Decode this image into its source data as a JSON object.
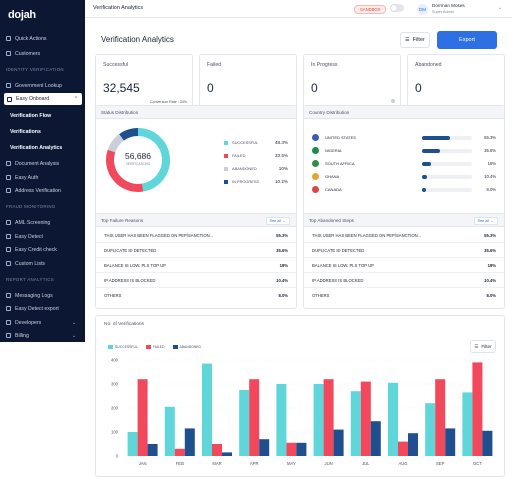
{
  "app": {
    "logo": "dojah"
  },
  "sidebar": {
    "quick_actions": "Quick Actions",
    "customers": "Customers",
    "identity_section": "IDENTITY VERIFICATION",
    "government_lookup": "Government Lookup",
    "easy_onboard": "Easy Onboard",
    "verification_flow": "Verification Flow",
    "verifications": "Verifications",
    "verification_analytics": "Verification Analytics",
    "document_analysis": "Document Analysis",
    "easy_auth": "Easy Auth",
    "address_verification": "Address Verification",
    "fraud_section": "FRAUD MONITORING",
    "aml_screening": "AML Screening",
    "easy_detect": "Easy Detect",
    "easy_credit_check": "Easy Credit check",
    "custom_lists": "Custom Lists",
    "report_section": "REPORT ANALYTICS",
    "messaging_logs": "Messaging Logs",
    "easy_detect_export": "Easy Detect export",
    "developers": "Developers",
    "billing": "Billing"
  },
  "topbar": {
    "title": "Verification Analytics",
    "sandbox": "SANDBOX",
    "avatar_initials": "DM",
    "user_name": "Dorrman Moses",
    "user_role": "Super Admin"
  },
  "page": {
    "title": "Verification Analytics",
    "filter_label": "Filter",
    "export_label": "Export"
  },
  "stats": {
    "successful_label": "Successful",
    "successful_value": "32,545",
    "conversion_rate": "Conversion Rate : 34%",
    "failed_label": "Failed",
    "failed_value": "0",
    "in_progress_label": "In Progress",
    "in_progress_value": "0",
    "abandoned_label": "Abandoned",
    "abandoned_value": "0"
  },
  "status_distribution": {
    "title": "Status Distribution",
    "total": "56,686",
    "total_label": "VERIFICATIONS",
    "items": [
      {
        "label": "SUCCESSFUL",
        "pct": "48.3%",
        "value": 48.3,
        "color": "#5fd6da"
      },
      {
        "label": "FAILED",
        "pct": "33.5%",
        "value": 33.5,
        "color": "#f2485b"
      },
      {
        "label": "ABANDONED",
        "pct": "10%",
        "value": 10,
        "color": "#c9ced8"
      },
      {
        "label": "IN PROGRESS",
        "pct": "10.2%",
        "value": 10.2,
        "color": "#1f4f8f"
      }
    ]
  },
  "country_distribution": {
    "title": "Country Distribution",
    "items": [
      {
        "name": "UNITED STATES",
        "pct": "55.3%",
        "value": 55.3,
        "flag": "#3b5bb5"
      },
      {
        "name": "NIGERIA",
        "pct": "35.6%",
        "value": 35.6,
        "flag": "#1e8a4a"
      },
      {
        "name": "SOUTH AFRICA",
        "pct": "18%",
        "value": 18,
        "flag": "#2f8f4a"
      },
      {
        "name": "GHANA",
        "pct": "10.4%",
        "value": 10.4,
        "flag": "#e0a82e"
      },
      {
        "name": "CANADA",
        "pct": "8.0%",
        "value": 8.0,
        "flag": "#e0463f"
      }
    ]
  },
  "failure_reasons": {
    "title": "Top Failure Reasons",
    "see_all": "See all →",
    "items": [
      {
        "text": "THIS USER HAS BEEN FLAGGED ON PEP/SANCTION...",
        "pct": "55.3%"
      },
      {
        "text": "DUPLICATE ID DETECTED",
        "pct": "35.6%"
      },
      {
        "text": "BALANCE IS LOW, PLS TOP UP",
        "pct": "18%"
      },
      {
        "text": "IP ADDRESS IS BLOCKED",
        "pct": "10.4%"
      },
      {
        "text": "OTHERS",
        "pct": "8.0%"
      }
    ]
  },
  "abandoned_steps": {
    "title": "Top Abandoned Steps",
    "see_all": "See all →",
    "items": [
      {
        "text": "THIS USER HAS BEEN FLAGGED ON PEP/SANCTION...",
        "pct": "55.3%"
      },
      {
        "text": "DUPLICATE ID DETECTED",
        "pct": "35.6%"
      },
      {
        "text": "BALANCE IS LOW, PLS TOP UP",
        "pct": "18%"
      },
      {
        "text": "IP ADDRESS IS BLOCKED",
        "pct": "10.4%"
      },
      {
        "text": "OTHERS",
        "pct": "8.0%"
      }
    ]
  },
  "verifications_chart": {
    "title": "No. of Verifications",
    "filter_label": "Filter"
  },
  "chart_data": {
    "type": "bar",
    "title": "No. of Verifications",
    "xlabel": "",
    "ylabel": "",
    "ylim": [
      0,
      400
    ],
    "yticks": [
      "0",
      "100",
      "200",
      "300",
      "400"
    ],
    "categories": [
      "JAN",
      "FEB",
      "MAR",
      "APR",
      "MAY",
      "JUN",
      "JUL",
      "AUG",
      "SEP",
      "OCT"
    ],
    "legend_position": "top-left",
    "series": [
      {
        "name": "SUCCESSFUL",
        "color": "#5fd6da",
        "values": [
          100,
          205,
          385,
          275,
          300,
          300,
          270,
          305,
          220,
          265
        ]
      },
      {
        "name": "FAILED",
        "color": "#f2485b",
        "values": [
          320,
          30,
          50,
          320,
          55,
          320,
          310,
          60,
          320,
          390
        ]
      },
      {
        "name": "ABANDONED",
        "color": "#1f4f8f",
        "values": [
          50,
          115,
          15,
          70,
          55,
          110,
          145,
          95,
          115,
          105
        ]
      }
    ]
  }
}
